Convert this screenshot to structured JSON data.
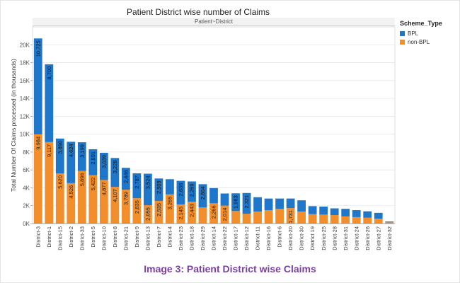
{
  "caption": "Image 3: Patient District wise Claims",
  "chart_data": {
    "type": "bar",
    "stacked": true,
    "title": "Patient District wise number of Claims",
    "panel_header": "Patient~District",
    "ylabel": "Total Number Of Claims processed  (in thousands)",
    "xlabel": "",
    "ylim": [
      0,
      22000
    ],
    "yticks": [
      0,
      2000,
      4000,
      6000,
      8000,
      10000,
      12000,
      14000,
      16000,
      18000,
      20000
    ],
    "ytick_labels": [
      "0K",
      "2K",
      "4K",
      "6K",
      "8K",
      "10K",
      "12K",
      "14K",
      "16K",
      "18K",
      "20K"
    ],
    "grid": true,
    "legend_title": "Scheme_Type",
    "legend_position": "top-right",
    "categories": [
      "District-3",
      "District-1",
      "District-15",
      "District-2",
      "District-33",
      "District-5",
      "District-10",
      "District-8",
      "District-21",
      "District-9",
      "District-13",
      "District-7",
      "District-4",
      "District-23",
      "District-18",
      "District-29",
      "District-14",
      "District-22",
      "District-17",
      "District-12",
      "District-11",
      "District-16",
      "District-6",
      "District-20",
      "District-30",
      "District 19",
      "District-25",
      "District-28",
      "District-31",
      "District-24",
      "District-26",
      "District-27",
      "District-32"
    ],
    "series": [
      {
        "name": "non-BPL",
        "color": "#f28e2b",
        "values": [
          9984,
          9117,
          5620,
          4526,
          5896,
          5422,
          4877,
          4107,
          3789,
          2835,
          2055,
          2535,
          3265,
          2145,
          2443,
          1800,
          2266,
          2014,
          1400,
          1100,
          1350,
          1500,
          1650,
          1731,
          1350,
          1050,
          1000,
          950,
          800,
          720,
          650,
          550,
          130
        ],
        "labels": [
          "9,984",
          "9,117",
          "5,620",
          "4,526",
          "5,896",
          "5,422",
          "4,877",
          "4,107",
          "3,789",
          "2,835",
          "2,055",
          "2,535",
          "3,265",
          "2,145",
          "2,443",
          "",
          "2,266",
          "2,014",
          "",
          "",
          "",
          "",
          "",
          "1,731",
          "",
          "",
          "",
          "",
          "",
          "",
          "",
          "",
          ""
        ]
      },
      {
        "name": "BPL",
        "color": "#1f77cc",
        "values": [
          10725,
          8700,
          3890,
          4624,
          3199,
          2891,
          3039,
          3228,
          2446,
          2787,
          3524,
          2509,
          1700,
          2636,
          2269,
          2604,
          1700,
          1350,
          1983,
          2321,
          1600,
          1300,
          1150,
          1070,
          1250,
          900,
          900,
          750,
          850,
          780,
          720,
          650,
          100
        ],
        "labels": [
          "10,725",
          "8,700",
          "3,890",
          "4,624",
          "3,199",
          "2,891",
          "3,039",
          "3,228",
          "2,446",
          "2,787",
          "3,524",
          "2,509",
          "",
          "2,636",
          "2,269",
          "2,604",
          "",
          "",
          "1,983",
          "2,321",
          "",
          "",
          "",
          "",
          "",
          "",
          "",
          "",
          "",
          "",
          "",
          "",
          ""
        ]
      }
    ]
  }
}
